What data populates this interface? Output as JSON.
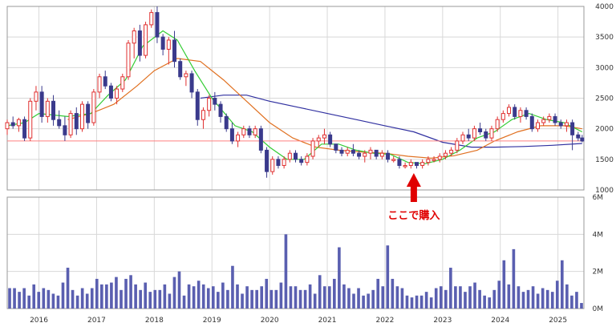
{
  "chart_data": [
    {
      "type": "candlestick",
      "y_ticks": [
        "1000",
        "1500",
        "2000",
        "2500",
        "3000",
        "3500",
        "4000"
      ],
      "ylim": [
        1000,
        4000
      ],
      "x_ticks": [
        "2016",
        "2017",
        "2018",
        "2019",
        "2020",
        "2021",
        "2022",
        "2023",
        "2024",
        "2025"
      ],
      "grid": true,
      "horizontal_line": {
        "value": 1800,
        "color": "#ff8080"
      },
      "annotation": {
        "text": "ここで購入",
        "date": "2022.5",
        "arrow_color": "#e00000"
      },
      "colors": {
        "up": "#e03030",
        "down": "#3a3a8c",
        "ma_short": "#33cc33",
        "ma_mid": "#e07020",
        "ma_long": "#3030a0"
      },
      "candles": [
        [
          "2015.45",
          2000,
          2150,
          1900,
          2100
        ],
        [
          "2015.55",
          2100,
          2200,
          2000,
          2050
        ],
        [
          "2015.65",
          2050,
          2180,
          1950,
          2150
        ],
        [
          "2015.75",
          2150,
          2200,
          1800,
          1850
        ],
        [
          "2015.85",
          1850,
          2500,
          1800,
          2450
        ],
        [
          "2015.95",
          2450,
          2700,
          2300,
          2600
        ],
        [
          "2016.05",
          2600,
          2700,
          2100,
          2200
        ],
        [
          "2016.15",
          2200,
          2500,
          2100,
          2450
        ],
        [
          "2016.25",
          2450,
          2550,
          2050,
          2150
        ],
        [
          "2016.35",
          2150,
          2300,
          2000,
          2050
        ],
        [
          "2016.45",
          2050,
          2200,
          1800,
          1900
        ],
        [
          "2016.55",
          1900,
          2300,
          1850,
          2250
        ],
        [
          "2016.65",
          2250,
          2350,
          1900,
          2000
        ],
        [
          "2016.75",
          2000,
          2450,
          1950,
          2400
        ],
        [
          "2016.85",
          2400,
          2450,
          2000,
          2100
        ],
        [
          "2016.95",
          2100,
          2650,
          2050,
          2600
        ],
        [
          "2017.05",
          2600,
          2900,
          2500,
          2850
        ],
        [
          "2017.15",
          2850,
          2950,
          2650,
          2700
        ],
        [
          "2017.25",
          2700,
          2750,
          2450,
          2500
        ],
        [
          "2017.35",
          2500,
          2700,
          2400,
          2650
        ],
        [
          "2017.45",
          2650,
          2900,
          2600,
          2850
        ],
        [
          "2017.55",
          2850,
          3450,
          2800,
          3400
        ],
        [
          "2017.65",
          3400,
          3650,
          3150,
          3600
        ],
        [
          "2017.75",
          3600,
          3700,
          3100,
          3200
        ],
        [
          "2017.85",
          3200,
          3750,
          3150,
          3700
        ],
        [
          "2017.95",
          3700,
          3950,
          3650,
          3900
        ],
        [
          "2018.05",
          3900,
          4000,
          3400,
          3500
        ],
        [
          "2018.15",
          3500,
          3550,
          3200,
          3300
        ],
        [
          "2018.25",
          3300,
          3500,
          3050,
          3450
        ],
        [
          "2018.35",
          3450,
          3600,
          3000,
          3100
        ],
        [
          "2018.45",
          3100,
          3150,
          2800,
          2850
        ],
        [
          "2018.55",
          2850,
          2950,
          2700,
          2900
        ],
        [
          "2018.65",
          2900,
          2950,
          2500,
          2600
        ],
        [
          "2018.75",
          2600,
          2650,
          2050,
          2150
        ],
        [
          "2018.85",
          2150,
          2350,
          2000,
          2300
        ],
        [
          "2018.95",
          2300,
          2550,
          2200,
          2500
        ],
        [
          "2019.05",
          2500,
          2600,
          2300,
          2400
        ],
        [
          "2019.15",
          2400,
          2450,
          2100,
          2200
        ],
        [
          "2019.25",
          2200,
          2250,
          1950,
          2000
        ],
        [
          "2019.35",
          2000,
          2100,
          1750,
          1800
        ],
        [
          "2019.45",
          1800,
          1950,
          1700,
          1900
        ],
        [
          "2019.55",
          1900,
          2050,
          1850,
          2000
        ],
        [
          "2019.65",
          2000,
          2050,
          1850,
          1900
        ],
        [
          "2019.75",
          1900,
          2050,
          1850,
          2000
        ],
        [
          "2019.85",
          2000,
          2050,
          1600,
          1650
        ],
        [
          "2019.95",
          1650,
          1700,
          1200,
          1300
        ],
        [
          "2020.05",
          1300,
          1550,
          1250,
          1500
        ],
        [
          "2020.15",
          1500,
          1550,
          1350,
          1400
        ],
        [
          "2020.25",
          1400,
          1550,
          1350,
          1500
        ],
        [
          "2020.35",
          1500,
          1650,
          1450,
          1600
        ],
        [
          "2020.45",
          1600,
          1650,
          1450,
          1500
        ],
        [
          "2020.55",
          1500,
          1550,
          1400,
          1450
        ],
        [
          "2020.65",
          1450,
          1600,
          1400,
          1550
        ],
        [
          "2020.75",
          1550,
          1850,
          1500,
          1800
        ],
        [
          "2020.85",
          1800,
          1900,
          1700,
          1850
        ],
        [
          "2020.95",
          1850,
          2000,
          1750,
          1900
        ],
        [
          "2021.05",
          1900,
          1950,
          1700,
          1750
        ],
        [
          "2021.15",
          1750,
          1750,
          1600,
          1650
        ],
        [
          "2021.25",
          1650,
          1700,
          1550,
          1600
        ],
        [
          "2021.35",
          1600,
          1700,
          1550,
          1650
        ],
        [
          "2021.45",
          1650,
          1750,
          1550,
          1600
        ],
        [
          "2021.55",
          1600,
          1650,
          1500,
          1550
        ],
        [
          "2021.65",
          1550,
          1650,
          1450,
          1600
        ],
        [
          "2021.75",
          1600,
          1700,
          1500,
          1650
        ],
        [
          "2021.85",
          1650,
          1650,
          1500,
          1550
        ],
        [
          "2021.95",
          1550,
          1650,
          1500,
          1600
        ],
        [
          "2022.05",
          1600,
          1650,
          1450,
          1500
        ],
        [
          "2022.15",
          1500,
          1550,
          1450,
          1500
        ],
        [
          "2022.25",
          1500,
          1550,
          1350,
          1400
        ],
        [
          "2022.35",
          1400,
          1450,
          1350,
          1400
        ],
        [
          "2022.45",
          1400,
          1500,
          1350,
          1450
        ],
        [
          "2022.55",
          1450,
          1450,
          1350,
          1400
        ],
        [
          "2022.65",
          1400,
          1500,
          1350,
          1450
        ],
        [
          "2022.75",
          1450,
          1550,
          1400,
          1500
        ],
        [
          "2022.85",
          1500,
          1550,
          1450,
          1500
        ],
        [
          "2022.95",
          1500,
          1600,
          1450,
          1550
        ],
        [
          "2023.05",
          1550,
          1650,
          1500,
          1600
        ],
        [
          "2023.15",
          1600,
          1700,
          1550,
          1650
        ],
        [
          "2023.25",
          1650,
          1850,
          1600,
          1800
        ],
        [
          "2023.35",
          1800,
          1950,
          1750,
          1900
        ],
        [
          "2023.45",
          1900,
          2000,
          1800,
          1850
        ],
        [
          "2023.55",
          1850,
          2050,
          1800,
          2000
        ],
        [
          "2023.65",
          2000,
          2100,
          1900,
          1950
        ],
        [
          "2023.75",
          1950,
          2000,
          1800,
          1850
        ],
        [
          "2023.85",
          1850,
          2050,
          1800,
          2000
        ],
        [
          "2023.95",
          2000,
          2200,
          1950,
          2150
        ],
        [
          "2024.05",
          2150,
          2300,
          2100,
          2250
        ],
        [
          "2024.15",
          2250,
          2400,
          2200,
          2350
        ],
        [
          "2024.25",
          2350,
          2400,
          2150,
          2200
        ],
        [
          "2024.35",
          2200,
          2350,
          2100,
          2300
        ],
        [
          "2024.45",
          2300,
          2350,
          2150,
          2200
        ],
        [
          "2024.55",
          2200,
          2250,
          1950,
          2000
        ],
        [
          "2024.65",
          2000,
          2150,
          1950,
          2100
        ],
        [
          "2024.75",
          2100,
          2200,
          2050,
          2150
        ],
        [
          "2024.85",
          2150,
          2250,
          2100,
          2200
        ],
        [
          "2024.95",
          2200,
          2250,
          2050,
          2100
        ],
        [
          "2025.05",
          2100,
          2150,
          2000,
          2050
        ],
        [
          "2025.15",
          2050,
          2150,
          1950,
          2100
        ],
        [
          "2025.25",
          2100,
          2150,
          1650,
          1900
        ],
        [
          "2025.35",
          1900,
          1950,
          1800,
          1850
        ],
        [
          "2025.42",
          1850,
          1900,
          1780,
          1800
        ]
      ],
      "ma_short": [
        [
          "2015.45",
          2050
        ],
        [
          "2015.75",
          2100
        ],
        [
          "2016.0",
          2250
        ],
        [
          "2016.5",
          2200
        ],
        [
          "2016.9",
          2250
        ],
        [
          "2017.2",
          2550
        ],
        [
          "2017.5",
          2800
        ],
        [
          "2017.8",
          3350
        ],
        [
          "2018.15",
          3600
        ],
        [
          "2018.4",
          3450
        ],
        [
          "2018.7",
          2950
        ],
        [
          "2019.0",
          2500
        ],
        [
          "2019.4",
          2050
        ],
        [
          "2019.7",
          1950
        ],
        [
          "2020.0",
          1700
        ],
        [
          "2020.3",
          1500
        ],
        [
          "2020.6",
          1500
        ],
        [
          "2020.9",
          1750
        ],
        [
          "2021.2",
          1750
        ],
        [
          "2021.5",
          1650
        ],
        [
          "2021.8",
          1600
        ],
        [
          "2022.1",
          1580
        ],
        [
          "2022.4",
          1450
        ],
        [
          "2022.7",
          1430
        ],
        [
          "2023.0",
          1500
        ],
        [
          "2023.3",
          1650
        ],
        [
          "2023.6",
          1850
        ],
        [
          "2023.9",
          1950
        ],
        [
          "2024.2",
          2150
        ],
        [
          "2024.5",
          2250
        ],
        [
          "2024.8",
          2150
        ],
        [
          "2025.1",
          2100
        ],
        [
          "2025.42",
          1950
        ]
      ],
      "ma_mid": [
        [
          "2016.5",
          2150
        ],
        [
          "2016.9",
          2250
        ],
        [
          "2017.3",
          2400
        ],
        [
          "2017.7",
          2700
        ],
        [
          "2018.0",
          2950
        ],
        [
          "2018.4",
          3150
        ],
        [
          "2018.8",
          3100
        ],
        [
          "2019.2",
          2800
        ],
        [
          "2019.6",
          2450
        ],
        [
          "2020.0",
          2100
        ],
        [
          "2020.4",
          1850
        ],
        [
          "2020.8",
          1700
        ],
        [
          "2021.2",
          1650
        ],
        [
          "2021.6",
          1620
        ],
        [
          "2022.0",
          1600
        ],
        [
          "2022.4",
          1550
        ],
        [
          "2022.8",
          1520
        ],
        [
          "2023.2",
          1560
        ],
        [
          "2023.6",
          1650
        ],
        [
          "2023.9",
          1800
        ],
        [
          "2024.3",
          1950
        ],
        [
          "2024.7",
          2050
        ],
        [
          "2025.1",
          2050
        ],
        [
          "2025.42",
          2000
        ]
      ],
      "ma_long": [
        [
          "2018.8",
          2500
        ],
        [
          "2019.2",
          2550
        ],
        [
          "2019.6",
          2550
        ],
        [
          "2020.0",
          2450
        ],
        [
          "2020.5",
          2350
        ],
        [
          "2021.0",
          2250
        ],
        [
          "2021.5",
          2150
        ],
        [
          "2022.0",
          2050
        ],
        [
          "2022.5",
          1950
        ],
        [
          "2023.0",
          1780
        ],
        [
          "2023.5",
          1700
        ],
        [
          "2023.9",
          1700
        ],
        [
          "2024.4",
          1710
        ],
        [
          "2024.9",
          1730
        ],
        [
          "2025.42",
          1760
        ]
      ]
    },
    {
      "type": "bar",
      "y_ticks": [
        "0M",
        "2M",
        "4M",
        "6M"
      ],
      "ylim": [
        0,
        6
      ],
      "x_ticks": [
        "2016",
        "2017",
        "2018",
        "2019",
        "2020",
        "2021",
        "2022",
        "2023",
        "2024",
        "2025"
      ],
      "bar_color": "#5a5fb0",
      "volume_m": [
        1.1,
        1.1,
        0.9,
        1.1,
        0.7,
        1.3,
        0.9,
        1.1,
        1.0,
        0.8,
        0.7,
        1.4,
        2.2,
        1.0,
        0.7,
        1.1,
        0.8,
        1.1,
        1.6,
        1.3,
        1.3,
        1.4,
        1.7,
        1.0,
        1.6,
        1.8,
        1.3,
        1.0,
        1.4,
        0.9,
        1.0,
        1.0,
        1.3,
        0.8,
        1.7,
        2.0,
        0.7,
        1.3,
        1.2,
        1.5,
        1.3,
        1.1,
        1.2,
        0.9,
        1.4,
        1.0,
        2.3,
        1.3,
        0.8,
        1.2,
        1.0,
        1.0,
        1.2,
        1.6,
        1.0,
        1.0,
        1.4,
        4.0,
        1.2,
        1.2,
        1.0,
        1.0,
        1.3,
        0.8,
        1.8,
        1.2,
        1.2,
        1.6,
        3.3,
        1.3,
        1.1,
        0.8,
        1.1,
        0.7,
        0.8,
        1.0,
        1.6,
        1.2,
        3.4,
        1.6,
        1.2,
        1.1,
        0.7,
        0.6,
        0.7,
        0.7,
        0.9,
        0.6,
        1.1,
        1.2,
        1.0,
        2.2,
        1.2,
        1.2,
        0.9,
        1.2,
        1.4,
        1.0,
        0.7,
        0.6,
        1.0,
        1.5,
        2.6,
        1.3,
        3.2,
        1.2,
        0.9,
        1.0,
        1.2,
        0.8,
        1.1,
        1.0,
        0.9,
        1.5,
        2.6,
        1.3,
        0.7,
        0.9,
        0.3
      ]
    }
  ]
}
